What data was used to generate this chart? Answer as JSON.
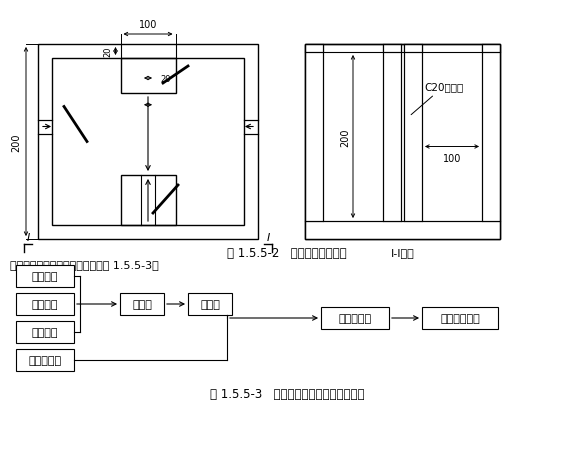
{
  "bg_color": "#ffffff",
  "title1": "图 1.5.5-2   沉淀池结构示意图",
  "title2": "图 1.5.5-3   地面排水系统水流走向示意图",
  "subtitle_text": "施工地面排水系统的水流走向见图 1.5.5-3。",
  "section_label": "I-I剖面",
  "c20_label": "C20混凝土",
  "dim_100_top": "100",
  "dim_20_top": "20",
  "dim_20_mid": "20",
  "dim_200_left": "200",
  "dim_200_right": "200",
  "dim_100_right": "100",
  "left_boxes": [
    "地表雨水",
    "基坑降水",
    "基坑明水",
    "洗车槽污水"
  ],
  "mid_boxes": [
    "排水沟",
    "沉砂池"
  ],
  "right_boxes": [
    "三级沉淀池",
    "市政排水管道"
  ]
}
